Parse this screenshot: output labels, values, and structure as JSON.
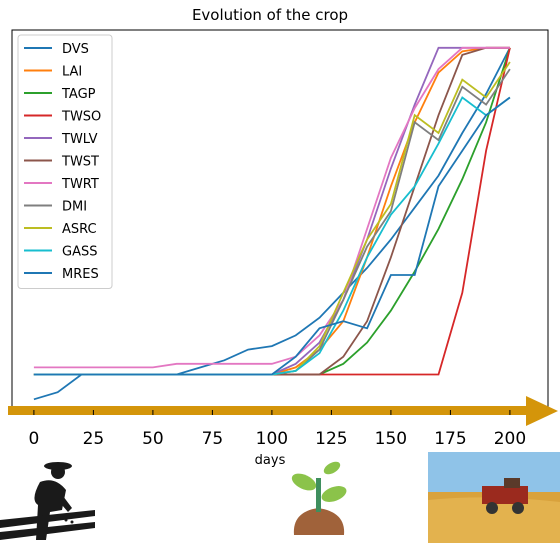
{
  "chart_data": {
    "type": "line",
    "title": "Evolution of the crop",
    "xlabel": "days",
    "x": [
      0,
      10,
      20,
      30,
      40,
      50,
      60,
      70,
      80,
      90,
      100,
      110,
      120,
      130,
      140,
      150,
      160,
      170,
      180,
      190,
      200
    ],
    "xlim": [
      -9.2,
      216
    ],
    "xticks": [
      0,
      25,
      50,
      75,
      100,
      125,
      150,
      175,
      200
    ],
    "ylim": [
      -0.03,
      1.04
    ],
    "legend": "upper left",
    "series": [
      {
        "name": "DVS",
        "color": "#1f77b4",
        "values": [
          0,
          0.02,
          0.07,
          0.07,
          0.07,
          0.07,
          0.07,
          0.09,
          0.11,
          0.14,
          0.15,
          0.18,
          0.23,
          0.3,
          0.37,
          0.45,
          0.54,
          0.63,
          0.75,
          0.86,
          0.99
        ]
      },
      {
        "name": "LAI",
        "color": "#ff7f0e",
        "values": [
          0.07,
          0.07,
          0.07,
          0.07,
          0.07,
          0.07,
          0.07,
          0.07,
          0.07,
          0.07,
          0.07,
          0.09,
          0.14,
          0.22,
          0.4,
          0.6,
          0.78,
          0.92,
          0.98,
          0.99,
          0.99
        ]
      },
      {
        "name": "TAGP",
        "color": "#2ca02c",
        "values": [
          0.07,
          0.07,
          0.07,
          0.07,
          0.07,
          0.07,
          0.07,
          0.07,
          0.07,
          0.07,
          0.07,
          0.07,
          0.07,
          0.1,
          0.16,
          0.25,
          0.36,
          0.48,
          0.62,
          0.78,
          0.99
        ]
      },
      {
        "name": "TWSO",
        "color": "#d62728",
        "values": [
          0.07,
          0.07,
          0.07,
          0.07,
          0.07,
          0.07,
          0.07,
          0.07,
          0.07,
          0.07,
          0.07,
          0.07,
          0.07,
          0.07,
          0.07,
          0.07,
          0.07,
          0.07,
          0.3,
          0.7,
          0.99
        ]
      },
      {
        "name": "TWLV",
        "color": "#9467bd",
        "values": [
          0.07,
          0.07,
          0.07,
          0.07,
          0.07,
          0.07,
          0.07,
          0.07,
          0.07,
          0.07,
          0.07,
          0.1,
          0.16,
          0.28,
          0.45,
          0.65,
          0.83,
          0.99,
          0.99,
          0.99,
          0.99
        ]
      },
      {
        "name": "TWST",
        "color": "#8c564b",
        "values": [
          0.07,
          0.07,
          0.07,
          0.07,
          0.07,
          0.07,
          0.07,
          0.07,
          0.07,
          0.07,
          0.07,
          0.07,
          0.07,
          0.12,
          0.22,
          0.4,
          0.6,
          0.8,
          0.97,
          0.99,
          0.99
        ]
      },
      {
        "name": "TWRT",
        "color": "#e377c2",
        "values": [
          0.09,
          0.09,
          0.09,
          0.09,
          0.09,
          0.09,
          0.1,
          0.1,
          0.1,
          0.1,
          0.1,
          0.12,
          0.18,
          0.28,
          0.48,
          0.68,
          0.82,
          0.93,
          0.99,
          0.99,
          0.99
        ]
      },
      {
        "name": "DMI",
        "color": "#7f7f7f",
        "values": [
          0.07,
          0.07,
          0.07,
          0.07,
          0.07,
          0.07,
          0.07,
          0.07,
          0.07,
          0.07,
          0.07,
          0.08,
          0.14,
          0.28,
          0.43,
          0.53,
          0.78,
          0.73,
          0.88,
          0.83,
          0.93
        ]
      },
      {
        "name": "ASRC",
        "color": "#bcbd22",
        "values": [
          0.07,
          0.07,
          0.07,
          0.07,
          0.07,
          0.07,
          0.07,
          0.07,
          0.07,
          0.07,
          0.07,
          0.08,
          0.15,
          0.3,
          0.45,
          0.55,
          0.8,
          0.75,
          0.9,
          0.85,
          0.95
        ]
      },
      {
        "name": "GASS",
        "color": "#17becf",
        "values": [
          0.07,
          0.07,
          0.07,
          0.07,
          0.07,
          0.07,
          0.07,
          0.07,
          0.07,
          0.07,
          0.07,
          0.08,
          0.13,
          0.25,
          0.4,
          0.52,
          0.6,
          0.72,
          0.85,
          0.8,
          0.85
        ]
      },
      {
        "name": "MRES",
        "color": "#1f77b4",
        "values": [
          0.07,
          0.07,
          0.07,
          0.07,
          0.07,
          0.07,
          0.07,
          0.07,
          0.07,
          0.07,
          0.07,
          0.12,
          0.2,
          0.22,
          0.2,
          0.35,
          0.35,
          0.6,
          0.7,
          0.8,
          0.85
        ]
      }
    ]
  }
}
